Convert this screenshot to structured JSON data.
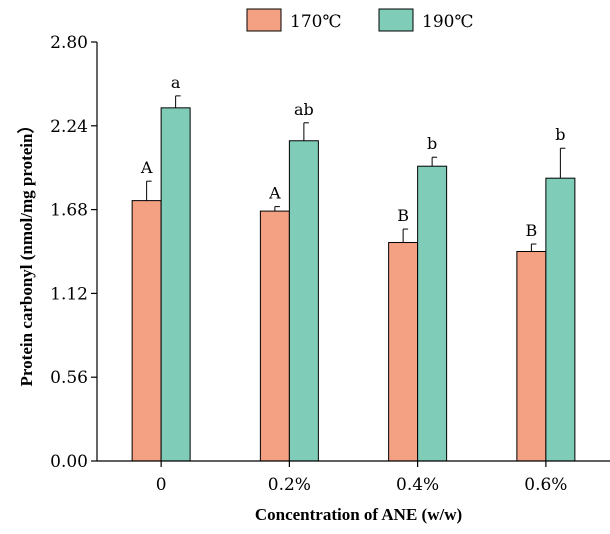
{
  "chart_data": {
    "type": "bar",
    "xlabel": "Concentration of ANE (w/w)",
    "ylabel": "Protein carbonyl (nmol/mg protein）",
    "ylim": [
      0,
      2.8
    ],
    "yticks": [
      "0.00",
      "0.56",
      "1.12",
      "1.68",
      "2.24",
      "2.80"
    ],
    "categories": [
      "0",
      "0.2%",
      "0.4%",
      "0.6%"
    ],
    "series": [
      {
        "name": "170℃",
        "color": "#f4a083",
        "values": [
          1.74,
          1.67,
          1.46,
          1.4
        ],
        "errors": [
          0.13,
          0.03,
          0.09,
          0.05
        ],
        "sig_labels": [
          "A",
          "A",
          "B",
          "B"
        ]
      },
      {
        "name": "190℃",
        "color": "#7fcdb8",
        "values": [
          2.36,
          2.14,
          1.97,
          1.89
        ],
        "errors": [
          0.08,
          0.12,
          0.06,
          0.2
        ],
        "sig_labels": [
          "a",
          "ab",
          "b",
          "b"
        ]
      }
    ],
    "legend_position": "top-center",
    "grid": false
  }
}
